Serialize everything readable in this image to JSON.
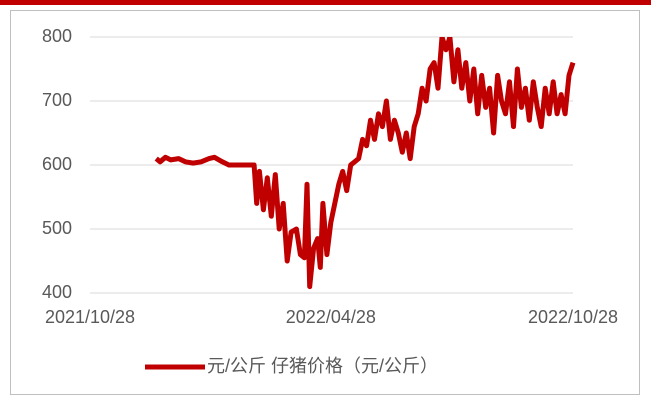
{
  "chart_data": {
    "type": "line",
    "x": [
      "2021/12/17",
      "2021/12/20",
      "2021/12/24",
      "2021/12/28",
      "2022/01/03",
      "2022/01/08",
      "2022/01/14",
      "2022/01/20",
      "2022/01/26",
      "2022/01/30",
      "2022/02/05",
      "2022/02/10",
      "2022/02/15",
      "2022/02/20",
      "2022/02/25",
      "2022/03/01",
      "2022/03/03",
      "2022/03/05",
      "2022/03/08",
      "2022/03/11",
      "2022/03/14",
      "2022/03/17",
      "2022/03/20",
      "2022/03/23",
      "2022/03/26",
      "2022/03/29",
      "2022/04/02",
      "2022/04/05",
      "2022/04/08",
      "2022/04/10",
      "2022/04/12",
      "2022/04/15",
      "2022/04/18",
      "2022/04/20",
      "2022/04/22",
      "2022/04/25",
      "2022/04/28",
      "2022/05/01",
      "2022/05/04",
      "2022/05/07",
      "2022/05/10",
      "2022/05/13",
      "2022/05/16",
      "2022/05/19",
      "2022/05/22",
      "2022/05/25",
      "2022/05/28",
      "2022/05/31",
      "2022/06/03",
      "2022/06/06",
      "2022/06/09",
      "2022/06/12",
      "2022/06/15",
      "2022/06/18",
      "2022/06/21",
      "2022/06/24",
      "2022/06/27",
      "2022/06/30",
      "2022/07/03",
      "2022/07/06",
      "2022/07/09",
      "2022/07/12",
      "2022/07/15",
      "2022/07/18",
      "2022/07/21",
      "2022/07/24",
      "2022/07/27",
      "2022/07/30",
      "2022/08/02",
      "2022/08/05",
      "2022/08/08",
      "2022/08/11",
      "2022/08/14",
      "2022/08/17",
      "2022/08/20",
      "2022/08/23",
      "2022/08/26",
      "2022/08/29",
      "2022/09/01",
      "2022/09/04",
      "2022/09/07",
      "2022/09/10",
      "2022/09/13",
      "2022/09/16",
      "2022/09/19",
      "2022/09/22",
      "2022/09/25",
      "2022/09/28",
      "2022/10/01",
      "2022/10/04",
      "2022/10/07",
      "2022/10/10",
      "2022/10/13",
      "2022/10/16",
      "2022/10/19",
      "2022/10/22",
      "2022/10/25",
      "2022/10/28"
    ],
    "series": [
      {
        "name": "元/公斤 仔猪价格（元/公斤）",
        "color": "#c00000",
        "values": [
          610,
          605,
          612,
          608,
          610,
          605,
          603,
          605,
          610,
          612,
          605,
          600,
          600,
          600,
          600,
          600,
          540,
          590,
          530,
          580,
          520,
          585,
          500,
          540,
          450,
          495,
          500,
          460,
          455,
          570,
          410,
          470,
          485,
          440,
          540,
          460,
          510,
          540,
          570,
          590,
          560,
          600,
          605,
          610,
          640,
          630,
          670,
          640,
          680,
          660,
          700,
          640,
          670,
          650,
          620,
          650,
          610,
          660,
          680,
          720,
          700,
          750,
          760,
          720,
          800,
          780,
          800,
          730,
          780,
          720,
          760,
          700,
          750,
          680,
          740,
          690,
          720,
          650,
          740,
          700,
          680,
          730,
          660,
          750,
          690,
          720,
          670,
          730,
          690,
          660,
          720,
          680,
          730,
          680,
          710,
          680,
          740,
          760
        ]
      }
    ],
    "xticks": [
      "2021/10/28",
      "2022/04/28",
      "2022/10/28"
    ],
    "ylim": [
      400,
      800
    ],
    "yticks": [
      400,
      500,
      600,
      700,
      800
    ],
    "grid": true
  }
}
